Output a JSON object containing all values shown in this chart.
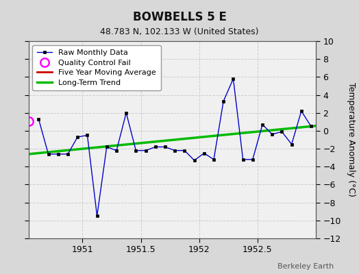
{
  "title": "BOWBELLS 5 E",
  "subtitle": "48.783 N, 102.133 W (United States)",
  "ylabel": "Temperature Anomaly (°C)",
  "watermark": "Berkeley Earth",
  "bg_color": "#d8d8d8",
  "plot_bg_color": "#f0f0f0",
  "ylim": [
    -12,
    10
  ],
  "xlim": [
    1950.54,
    1953.0
  ],
  "yticks": [
    -12,
    -10,
    -8,
    -6,
    -4,
    -2,
    0,
    2,
    4,
    6,
    8,
    10
  ],
  "xticks": [
    1951.0,
    1951.5,
    1952.0,
    1952.5
  ],
  "xticklabels": [
    "1951",
    "1951.5",
    "1952",
    "1952.5"
  ],
  "raw_x": [
    1950.625,
    1950.708,
    1950.792,
    1950.875,
    1950.958,
    1951.042,
    1951.125,
    1951.208,
    1951.292,
    1951.375,
    1951.458,
    1951.542,
    1951.625,
    1951.708,
    1951.792,
    1951.875,
    1951.958,
    1952.042,
    1952.125,
    1952.208,
    1952.292,
    1952.375,
    1952.458,
    1952.542,
    1952.625,
    1952.708,
    1952.792,
    1952.875,
    1952.958
  ],
  "raw_y": [
    1.3,
    -2.6,
    -2.6,
    -2.6,
    -0.7,
    -0.5,
    -9.5,
    -1.8,
    -2.2,
    2.0,
    -2.2,
    -2.2,
    -1.8,
    -1.8,
    -2.2,
    -2.2,
    -3.3,
    -2.5,
    -3.2,
    3.3,
    5.8,
    -3.2,
    -3.2,
    0.7,
    -0.4,
    -0.1,
    -1.5,
    2.2,
    0.5
  ],
  "qc_fail_x": [
    1950.542
  ],
  "qc_fail_y": [
    1.1
  ],
  "trend_x": [
    1950.54,
    1953.0
  ],
  "trend_y": [
    -2.6,
    0.55
  ],
  "line_color": "#0000cc",
  "marker_color": "#000000",
  "qc_color": "#ff00ff",
  "trend_color": "#00bb00",
  "moving_avg_color": "#cc0000"
}
